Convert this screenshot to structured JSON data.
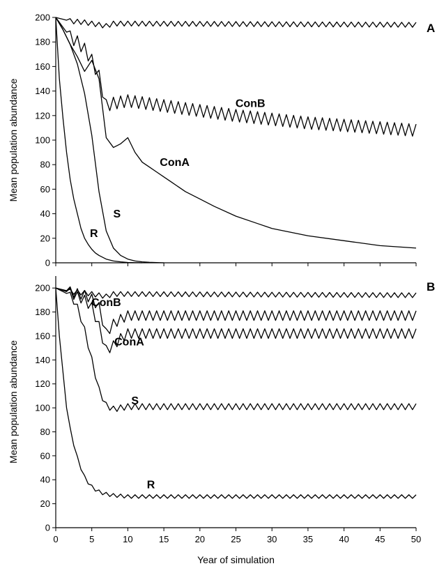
{
  "chart_data": [
    {
      "type": "line",
      "panel_label": "A",
      "xlabel": "",
      "ylabel": "Mean population abundance",
      "xlim": [
        0,
        50
      ],
      "ylim": [
        0,
        200
      ],
      "yticks": [
        0,
        20,
        40,
        60,
        80,
        100,
        120,
        140,
        160,
        180,
        200
      ],
      "xticks": [],
      "legend": "none",
      "grid": false,
      "series": [
        {
          "name": "",
          "label_x": 0,
          "label_y": 0,
          "oscillating": true,
          "amplitude": 2,
          "x": [
            0,
            2,
            4,
            5,
            6,
            7,
            8,
            10,
            50
          ],
          "y": [
            200,
            197,
            196,
            195,
            194,
            193,
            195,
            195,
            194
          ]
        },
        {
          "name": "ConB",
          "label_x": 27,
          "label_y": 127,
          "oscillating": true,
          "amplitude": 5,
          "x": [
            0,
            1,
            2,
            3,
            4,
            5,
            6,
            7,
            8,
            10,
            15,
            20,
            25,
            30,
            35,
            40,
            45,
            50
          ],
          "y": [
            200,
            192,
            184,
            180,
            174,
            165,
            152,
            128,
            130,
            132,
            128,
            124,
            120,
            117,
            114,
            112,
            110,
            108
          ]
        },
        {
          "name": "ConA",
          "label_x": 16.5,
          "label_y": 79,
          "oscillating": false,
          "amplitude": 0,
          "x": [
            0,
            1,
            2,
            3,
            4,
            5,
            6,
            7,
            8,
            9,
            10,
            11,
            12,
            13,
            14,
            15,
            16,
            18,
            20,
            22,
            25,
            28,
            30,
            35,
            40,
            45,
            50
          ],
          "y": [
            200,
            190,
            178,
            168,
            156,
            165,
            150,
            102,
            94,
            97,
            102,
            90,
            82,
            78,
            74,
            70,
            66,
            58,
            52,
            46,
            38,
            32,
            28,
            22,
            18,
            14,
            12
          ]
        },
        {
          "name": "S",
          "label_x": 8.5,
          "label_y": 37,
          "oscillating": false,
          "amplitude": 0,
          "x": [
            0,
            1,
            2,
            3,
            4,
            5,
            6,
            7,
            8,
            9,
            10,
            11,
            12,
            13,
            14,
            15
          ],
          "y": [
            200,
            190,
            178,
            162,
            138,
            104,
            58,
            26,
            12,
            6,
            3,
            1.5,
            0.8,
            0.4,
            0.2,
            0
          ]
        },
        {
          "name": "R",
          "label_x": 5.3,
          "label_y": 21,
          "oscillating": false,
          "amplitude": 0,
          "x": [
            0,
            0.5,
            1,
            1.5,
            2,
            2.5,
            3,
            3.5,
            4,
            4.5,
            5,
            5.5,
            6,
            7,
            8,
            9,
            10,
            12
          ],
          "y": [
            200,
            150,
            118,
            90,
            68,
            52,
            40,
            28,
            20,
            15,
            11,
            8,
            6,
            3,
            1.5,
            0.8,
            0.3,
            0
          ]
        }
      ]
    },
    {
      "type": "line",
      "panel_label": "B",
      "xlabel": "Year of simulation",
      "ylabel": "Mean population abundance",
      "xlim": [
        0,
        50
      ],
      "ylim": [
        0,
        210
      ],
      "yticks": [
        0,
        20,
        40,
        60,
        80,
        100,
        120,
        140,
        160,
        180,
        200
      ],
      "xticks": [
        0,
        5,
        10,
        15,
        20,
        25,
        30,
        35,
        40,
        45,
        50
      ],
      "legend": "none",
      "grid": false,
      "series": [
        {
          "name": "",
          "label_x": 0,
          "label_y": 0,
          "oscillating": true,
          "amplitude": 2,
          "x": [
            0,
            2,
            4,
            5,
            6,
            7,
            8,
            10,
            50
          ],
          "y": [
            200,
            197,
            196,
            195,
            194,
            193,
            195,
            195,
            194
          ]
        },
        {
          "name": "ConB",
          "label_x": 7.0,
          "label_y": 185,
          "oscillating": true,
          "amplitude": 4,
          "x": [
            0,
            2,
            4,
            5,
            6,
            7,
            8,
            9,
            10,
            15,
            20,
            30,
            40,
            50
          ],
          "y": [
            200,
            197,
            194,
            191,
            184,
            162,
            170,
            174,
            177,
            177,
            177,
            177,
            177,
            177
          ]
        },
        {
          "name": "ConA",
          "label_x": 10.2,
          "label_y": 152,
          "oscillating": true,
          "amplitude": 4,
          "x": [
            0,
            2,
            4,
            5,
            6,
            7,
            8,
            9,
            10,
            11,
            15,
            20,
            30,
            40,
            50
          ],
          "y": [
            200,
            196,
            190,
            184,
            168,
            148,
            152,
            158,
            162,
            162,
            162,
            162,
            162,
            162,
            162
          ]
        },
        {
          "name": "S",
          "label_x": 11.0,
          "label_y": 103,
          "oscillating": true,
          "amplitude": 2.5,
          "x": [
            0,
            2,
            3,
            4,
            5,
            6,
            7,
            8,
            9,
            10,
            15,
            20,
            30,
            40,
            50
          ],
          "y": [
            200,
            194,
            184,
            165,
            140,
            115,
            102,
            99,
            100,
            101,
            101,
            101,
            101,
            101,
            101
          ]
        },
        {
          "name": "R",
          "label_x": 13.2,
          "label_y": 33,
          "oscillating": true,
          "amplitude": 1.5,
          "x": [
            0,
            0.5,
            1,
            1.5,
            2,
            2.5,
            3,
            3.5,
            4,
            4.5,
            5,
            6,
            7,
            8,
            9,
            10,
            20,
            50
          ],
          "y": [
            200,
            160,
            130,
            100,
            82,
            70,
            58,
            50,
            42,
            38,
            34,
            30,
            28,
            27,
            26.5,
            26,
            26,
            26
          ]
        }
      ]
    }
  ]
}
